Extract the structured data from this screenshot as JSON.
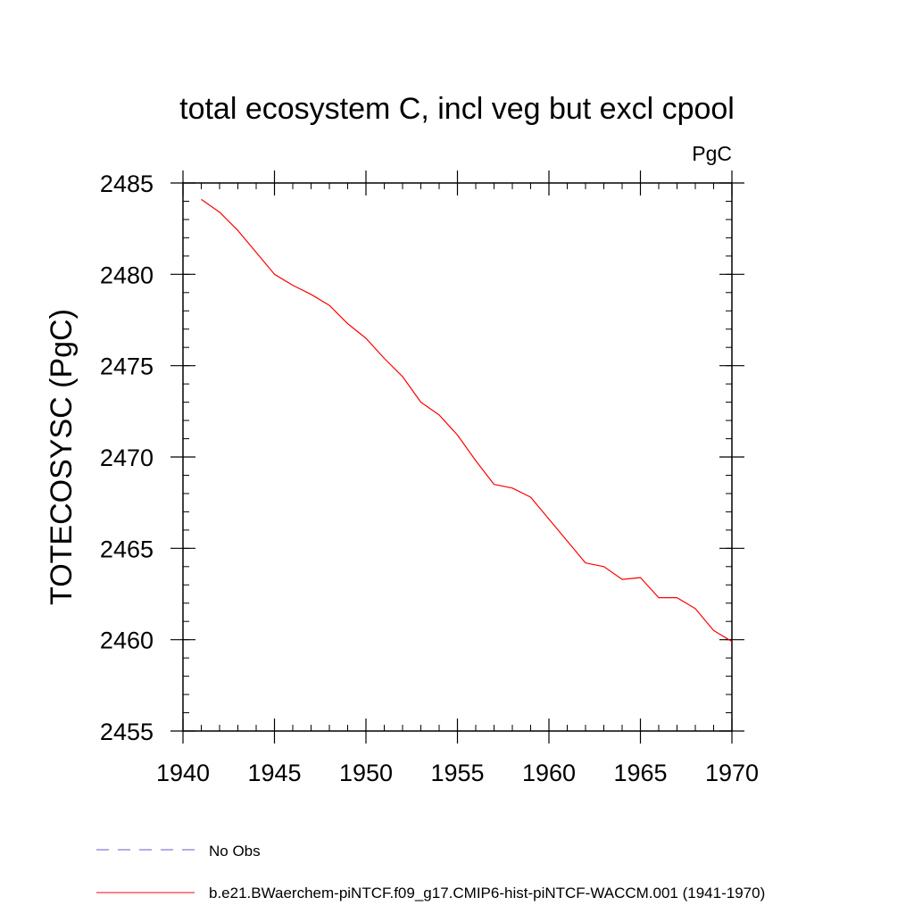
{
  "chart_data": {
    "type": "line",
    "title": "total ecosystem C, incl veg but excl cpool",
    "units": "PgC",
    "ylabel": "TOTECOSYSC  (PgC)",
    "xlabel": "",
    "xlim": [
      1940,
      1970
    ],
    "ylim": [
      2455,
      2485
    ],
    "xticks": [
      1940,
      1945,
      1950,
      1955,
      1960,
      1965,
      1970
    ],
    "yticks": [
      2455,
      2460,
      2465,
      2470,
      2475,
      2480,
      2485
    ],
    "x_minor_step": 1,
    "y_minor_step": 1,
    "grid": false,
    "legend_position": "bottom-left",
    "legend": [
      {
        "label": "No Obs",
        "color": "#6a5acd",
        "dash": "dashed"
      },
      {
        "label": "b.e21.BWaerchem-piNTCF.f09_g17.CMIP6-hist-piNTCF-WACCM.001 (1941-1970)",
        "color": "#ff0000",
        "dash": "solid"
      }
    ],
    "series": [
      {
        "name": "b.e21.BWaerchem-piNTCF.f09_g17.CMIP6-hist-piNTCF-WACCM.001 (1941-1970)",
        "color": "#ff0000",
        "x": [
          1941,
          1942,
          1943,
          1944,
          1945,
          1946,
          1947,
          1948,
          1949,
          1950,
          1951,
          1952,
          1953,
          1954,
          1955,
          1956,
          1957,
          1958,
          1959,
          1960,
          1961,
          1962,
          1963,
          1964,
          1965,
          1966,
          1967,
          1968,
          1969,
          1970
        ],
        "y": [
          2484.1,
          2483.4,
          2482.4,
          2481.2,
          2480.0,
          2479.4,
          2478.9,
          2478.3,
          2477.3,
          2476.5,
          2475.4,
          2474.4,
          2473.0,
          2472.3,
          2471.2,
          2469.8,
          2468.5,
          2468.3,
          2467.8,
          2466.6,
          2465.4,
          2464.2,
          2464.0,
          2463.3,
          2463.4,
          2462.3,
          2462.3,
          2461.7,
          2460.5,
          2459.9
        ]
      }
    ]
  }
}
